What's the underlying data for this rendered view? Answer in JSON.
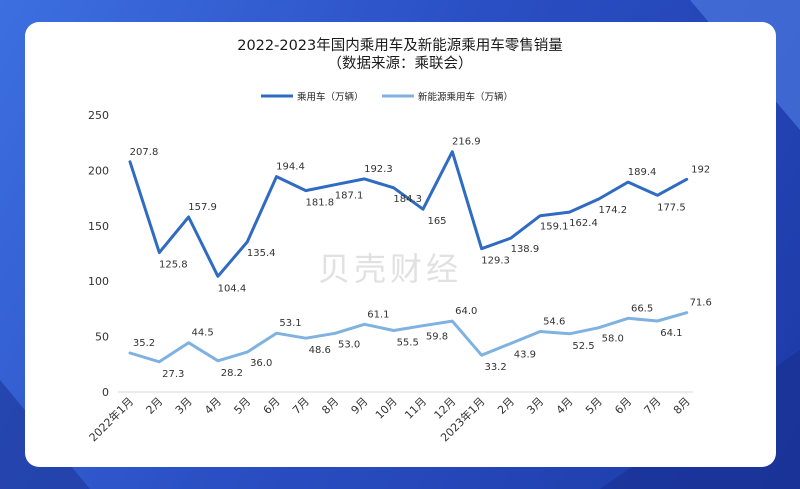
{
  "chart_data": {
    "type": "line",
    "title": "2022-2023年国内乘用车及新能源乘用车零售销量",
    "subtitle": "（数据来源：乘联会）",
    "categories": [
      "2022年1月",
      "2月",
      "3月",
      "4月",
      "5月",
      "6月",
      "7月",
      "8月",
      "9月",
      "10月",
      "11月",
      "12月",
      "2023年1月",
      "2月",
      "3月",
      "4月",
      "5月",
      "6月",
      "7月",
      "8月"
    ],
    "series": [
      {
        "name": "乘用车（万辆）",
        "color": "#2f6bc2",
        "values": [
          207.8,
          125.8,
          157.9,
          104.4,
          135.4,
          194.4,
          181.8,
          187.1,
          192.3,
          184.3,
          165,
          216.9,
          129.3,
          138.9,
          159.1,
          162.4,
          174.2,
          189.4,
          177.5,
          192
        ],
        "labels": [
          "207.8",
          "125.8",
          "157.9",
          "104.4",
          "135.4",
          "194.4",
          "181.8",
          "187.1",
          "192.3",
          "184.3",
          "165",
          "216.9",
          "129.3",
          "138.9",
          "159.1",
          "162.4",
          "174.2",
          "189.4",
          "177.5",
          "192"
        ]
      },
      {
        "name": "新能源乘用车（万辆）",
        "color": "#7fb2e0",
        "values": [
          35.2,
          27.3,
          44.5,
          28.2,
          36.0,
          53.1,
          48.6,
          53.0,
          61.1,
          55.5,
          59.8,
          64.0,
          33.2,
          43.9,
          54.6,
          52.5,
          58.0,
          66.5,
          64.1,
          71.6
        ],
        "labels": [
          "35.2",
          "27.3",
          "44.5",
          "28.2",
          "36.0",
          "53.1",
          "48.6",
          "53.0",
          "61.1",
          "55.5",
          "59.8",
          "64.0",
          "33.2",
          "43.9",
          "54.6",
          "52.5",
          "58.0",
          "66.5",
          "64.1",
          "71.6"
        ]
      }
    ],
    "yticks": [
      "0",
      "50",
      "100",
      "150",
      "200",
      "250"
    ],
    "ylim": [
      0,
      250
    ],
    "grid": false,
    "legend": "top-center",
    "watermark": "贝壳财经"
  }
}
